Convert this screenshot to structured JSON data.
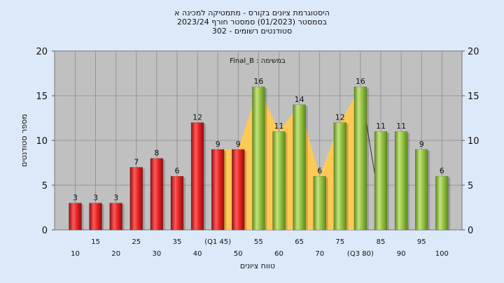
{
  "chart_data": {
    "type": "bar",
    "title_lines": [
      "היסטוגרמת ציונים בקורס - מתמטיקה למכינה א",
      "בסמסטר  (01/2023)  סמסטר חורף  2023/24",
      "סטודנטים רשומים - 302"
    ],
    "annotation": "Final_B : במשימה",
    "xlabel": "טווח ציונים",
    "ylabel": "מספר סטודנטים",
    "ylim": [
      0,
      20
    ],
    "yticks": [
      "0",
      "5",
      "10",
      "15",
      "20"
    ],
    "categories": [
      "10",
      "15",
      "20",
      "25",
      "30",
      "35",
      "40",
      "(Q1 45)",
      "50",
      "55",
      "60",
      "65",
      "70",
      "75",
      "(Q3 80)",
      "85",
      "90",
      "95",
      "100"
    ],
    "values": [
      3,
      3,
      3,
      7,
      8,
      6,
      12,
      9,
      9,
      16,
      11,
      14,
      6,
      12,
      16,
      11,
      11,
      9,
      6
    ],
    "bar_colors": [
      "#e02525",
      "#e02525",
      "#e02525",
      "#e02525",
      "#e02525",
      "#e02525",
      "#e02525",
      "#e02525",
      "#e02525",
      "#8dc03c",
      "#8dc03c",
      "#8dc03c",
      "#8dc03c",
      "#8dc03c",
      "#8dc03c",
      "#8dc03c",
      "#8dc03c",
      "#8dc03c",
      "#8dc03c"
    ],
    "area_color": "#ffc955",
    "plot_background": "#c0c0c0",
    "grid": true
  }
}
